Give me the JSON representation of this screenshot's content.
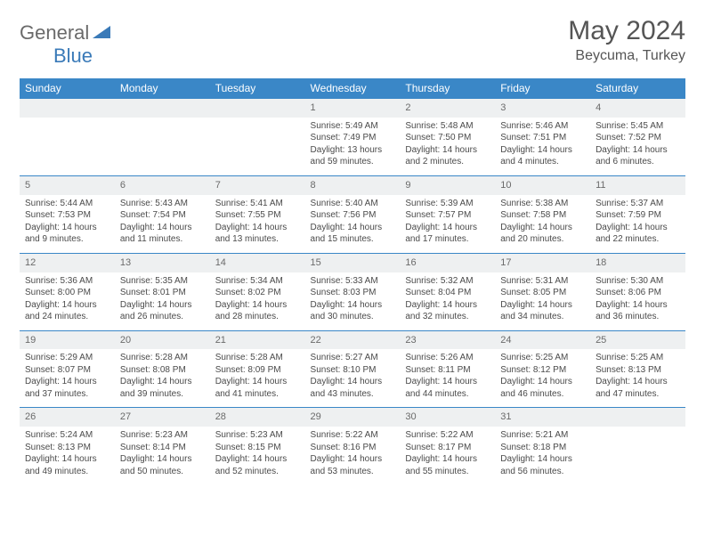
{
  "brand": {
    "part1": "General",
    "part2": "Blue"
  },
  "title": "May 2024",
  "location": "Beycuma, Turkey",
  "colors": {
    "header_bg": "#3a87c7",
    "header_text": "#ffffff",
    "daynum_bg": "#eef0f1",
    "row_border": "#3a87c7",
    "body_text": "#4a4a4a",
    "title_text": "#555555",
    "logo_gray": "#6a6a6a",
    "logo_blue": "#3a7ab8"
  },
  "dow": [
    "Sunday",
    "Monday",
    "Tuesday",
    "Wednesday",
    "Thursday",
    "Friday",
    "Saturday"
  ],
  "weeks": [
    [
      null,
      null,
      null,
      {
        "n": "1",
        "sr": "Sunrise: 5:49 AM",
        "ss": "Sunset: 7:49 PM",
        "dl": "Daylight: 13 hours and 59 minutes."
      },
      {
        "n": "2",
        "sr": "Sunrise: 5:48 AM",
        "ss": "Sunset: 7:50 PM",
        "dl": "Daylight: 14 hours and 2 minutes."
      },
      {
        "n": "3",
        "sr": "Sunrise: 5:46 AM",
        "ss": "Sunset: 7:51 PM",
        "dl": "Daylight: 14 hours and 4 minutes."
      },
      {
        "n": "4",
        "sr": "Sunrise: 5:45 AM",
        "ss": "Sunset: 7:52 PM",
        "dl": "Daylight: 14 hours and 6 minutes."
      }
    ],
    [
      {
        "n": "5",
        "sr": "Sunrise: 5:44 AM",
        "ss": "Sunset: 7:53 PM",
        "dl": "Daylight: 14 hours and 9 minutes."
      },
      {
        "n": "6",
        "sr": "Sunrise: 5:43 AM",
        "ss": "Sunset: 7:54 PM",
        "dl": "Daylight: 14 hours and 11 minutes."
      },
      {
        "n": "7",
        "sr": "Sunrise: 5:41 AM",
        "ss": "Sunset: 7:55 PM",
        "dl": "Daylight: 14 hours and 13 minutes."
      },
      {
        "n": "8",
        "sr": "Sunrise: 5:40 AM",
        "ss": "Sunset: 7:56 PM",
        "dl": "Daylight: 14 hours and 15 minutes."
      },
      {
        "n": "9",
        "sr": "Sunrise: 5:39 AM",
        "ss": "Sunset: 7:57 PM",
        "dl": "Daylight: 14 hours and 17 minutes."
      },
      {
        "n": "10",
        "sr": "Sunrise: 5:38 AM",
        "ss": "Sunset: 7:58 PM",
        "dl": "Daylight: 14 hours and 20 minutes."
      },
      {
        "n": "11",
        "sr": "Sunrise: 5:37 AM",
        "ss": "Sunset: 7:59 PM",
        "dl": "Daylight: 14 hours and 22 minutes."
      }
    ],
    [
      {
        "n": "12",
        "sr": "Sunrise: 5:36 AM",
        "ss": "Sunset: 8:00 PM",
        "dl": "Daylight: 14 hours and 24 minutes."
      },
      {
        "n": "13",
        "sr": "Sunrise: 5:35 AM",
        "ss": "Sunset: 8:01 PM",
        "dl": "Daylight: 14 hours and 26 minutes."
      },
      {
        "n": "14",
        "sr": "Sunrise: 5:34 AM",
        "ss": "Sunset: 8:02 PM",
        "dl": "Daylight: 14 hours and 28 minutes."
      },
      {
        "n": "15",
        "sr": "Sunrise: 5:33 AM",
        "ss": "Sunset: 8:03 PM",
        "dl": "Daylight: 14 hours and 30 minutes."
      },
      {
        "n": "16",
        "sr": "Sunrise: 5:32 AM",
        "ss": "Sunset: 8:04 PM",
        "dl": "Daylight: 14 hours and 32 minutes."
      },
      {
        "n": "17",
        "sr": "Sunrise: 5:31 AM",
        "ss": "Sunset: 8:05 PM",
        "dl": "Daylight: 14 hours and 34 minutes."
      },
      {
        "n": "18",
        "sr": "Sunrise: 5:30 AM",
        "ss": "Sunset: 8:06 PM",
        "dl": "Daylight: 14 hours and 36 minutes."
      }
    ],
    [
      {
        "n": "19",
        "sr": "Sunrise: 5:29 AM",
        "ss": "Sunset: 8:07 PM",
        "dl": "Daylight: 14 hours and 37 minutes."
      },
      {
        "n": "20",
        "sr": "Sunrise: 5:28 AM",
        "ss": "Sunset: 8:08 PM",
        "dl": "Daylight: 14 hours and 39 minutes."
      },
      {
        "n": "21",
        "sr": "Sunrise: 5:28 AM",
        "ss": "Sunset: 8:09 PM",
        "dl": "Daylight: 14 hours and 41 minutes."
      },
      {
        "n": "22",
        "sr": "Sunrise: 5:27 AM",
        "ss": "Sunset: 8:10 PM",
        "dl": "Daylight: 14 hours and 43 minutes."
      },
      {
        "n": "23",
        "sr": "Sunrise: 5:26 AM",
        "ss": "Sunset: 8:11 PM",
        "dl": "Daylight: 14 hours and 44 minutes."
      },
      {
        "n": "24",
        "sr": "Sunrise: 5:25 AM",
        "ss": "Sunset: 8:12 PM",
        "dl": "Daylight: 14 hours and 46 minutes."
      },
      {
        "n": "25",
        "sr": "Sunrise: 5:25 AM",
        "ss": "Sunset: 8:13 PM",
        "dl": "Daylight: 14 hours and 47 minutes."
      }
    ],
    [
      {
        "n": "26",
        "sr": "Sunrise: 5:24 AM",
        "ss": "Sunset: 8:13 PM",
        "dl": "Daylight: 14 hours and 49 minutes."
      },
      {
        "n": "27",
        "sr": "Sunrise: 5:23 AM",
        "ss": "Sunset: 8:14 PM",
        "dl": "Daylight: 14 hours and 50 minutes."
      },
      {
        "n": "28",
        "sr": "Sunrise: 5:23 AM",
        "ss": "Sunset: 8:15 PM",
        "dl": "Daylight: 14 hours and 52 minutes."
      },
      {
        "n": "29",
        "sr": "Sunrise: 5:22 AM",
        "ss": "Sunset: 8:16 PM",
        "dl": "Daylight: 14 hours and 53 minutes."
      },
      {
        "n": "30",
        "sr": "Sunrise: 5:22 AM",
        "ss": "Sunset: 8:17 PM",
        "dl": "Daylight: 14 hours and 55 minutes."
      },
      {
        "n": "31",
        "sr": "Sunrise: 5:21 AM",
        "ss": "Sunset: 8:18 PM",
        "dl": "Daylight: 14 hours and 56 minutes."
      },
      null
    ]
  ]
}
